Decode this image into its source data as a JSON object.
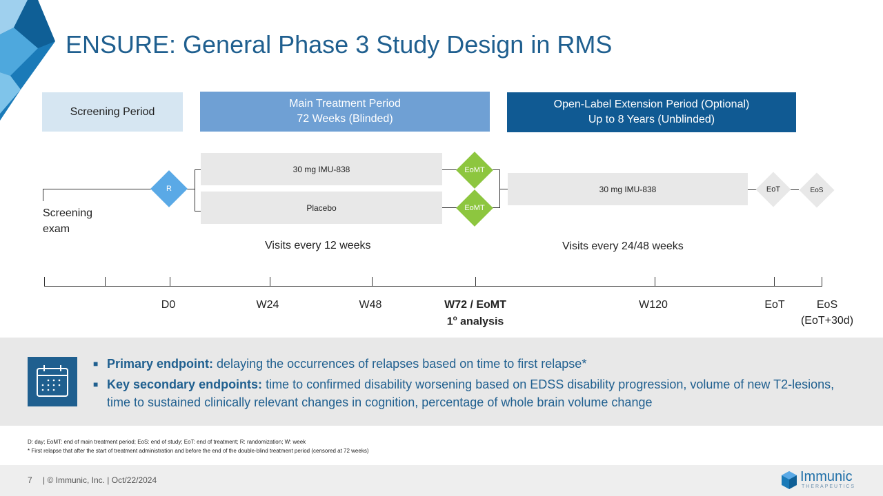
{
  "title": "ENSURE: General Phase 3 Study Design in RMS",
  "phases": {
    "screening": {
      "label": "Screening Period",
      "bg": "#d6e6f2",
      "color": "#222222"
    },
    "main": {
      "line1": "Main Treatment Period",
      "line2": "72 Weeks (Blinded)",
      "bg": "#6fa0d4",
      "color": "#ffffff"
    },
    "ole": {
      "line1": "Open-Label Extension Period (Optional)",
      "line2": "Up to 8 Years (Unblinded)",
      "bg": "#105a93",
      "color": "#ffffff"
    }
  },
  "flow": {
    "screening_label": "Screening exam",
    "randomization": "R",
    "arm1": "30 mg IMU-838",
    "arm2": "Placebo",
    "eomt_top": "EoMT",
    "eomt_bottom": "EoMT",
    "ole_arm": "30 mg IMU-838",
    "eot": "EoT",
    "eos": "EoS",
    "visits_main": "Visits every 12 weeks",
    "visits_ole": "Visits every 24/48 weeks",
    "colors": {
      "randomization": "#5aa9e6",
      "eomt": "#8dc63f",
      "end": "#e8e8e8"
    }
  },
  "timeline": {
    "d0": "D0",
    "w24": "W24",
    "w48": "W48",
    "w72": "W72 / EoMT",
    "analysis": "1",
    "analysis_sup": "o",
    "analysis_suffix": " analysis",
    "w120": "W120",
    "eot": "EoT",
    "eos": "EoS",
    "eos_sub": "(EoT+30d)"
  },
  "endpoints": {
    "primary_label": "Primary endpoint:",
    "primary_text": " delaying the occurrences of relapses based on time to first relapse*",
    "secondary_label": "Key secondary endpoints:",
    "secondary_text": " time to confirmed disability worsening based on EDSS disability progression, volume of new T2-lesions, time to sustained clinically relevant changes in cognition, percentage of whole brain volume change",
    "icon": "calendar-icon"
  },
  "footnotes": {
    "abbrev": "D: day; EoMT: end of main treatment period; EoS: end of study; EoT: end of treatment; R: randomization; W: week",
    "star": "* First relapse that after the start of treatment administration and before the end of the double-blind treatment period (censored at 72 weeks)"
  },
  "footer": {
    "page": "7",
    "copyright": "|  © Immunic, Inc.  | Oct/22/2024",
    "brand": "Immunic",
    "brand_sub": "THERAPEUTICS"
  }
}
